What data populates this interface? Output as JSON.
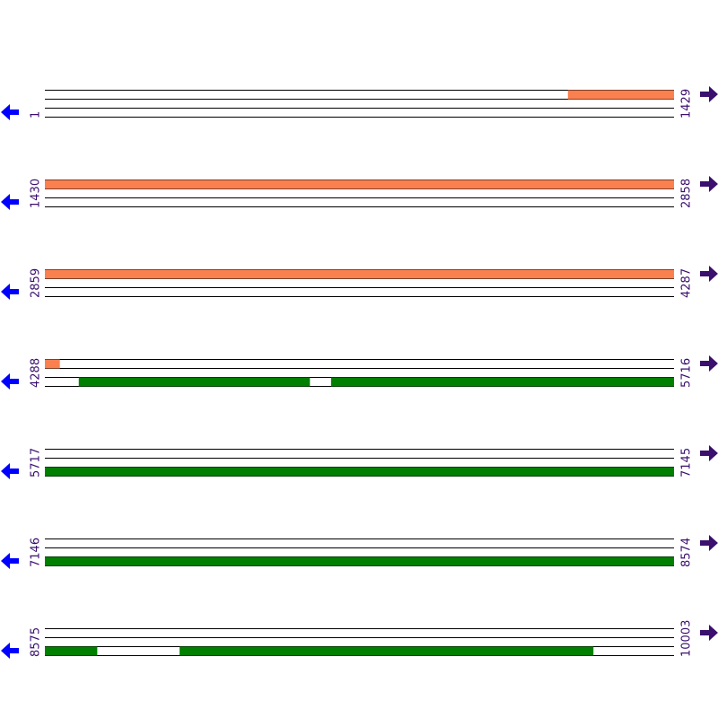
{
  "rows": [
    {
      "start": 1,
      "end": 1429
    },
    {
      "start": 1430,
      "end": 2858
    },
    {
      "start": 2859,
      "end": 4287
    },
    {
      "start": 4288,
      "end": 5716
    },
    {
      "start": 5717,
      "end": 7145
    },
    {
      "start": 7146,
      "end": 8574
    },
    {
      "start": 8575,
      "end": 10003
    }
  ],
  "features": [
    {
      "track": 0,
      "color": "#fa8050",
      "start": 1189,
      "end": 4321
    },
    {
      "track": 2,
      "color": "#007f00",
      "start": 4365,
      "end": 4889
    },
    {
      "track": 2,
      "color": "#007f00",
      "start": 4938,
      "end": 8693
    },
    {
      "track": 2,
      "color": "#007f00",
      "start": 8881,
      "end": 9820
    }
  ]
}
